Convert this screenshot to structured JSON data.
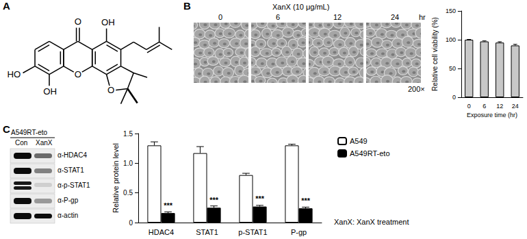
{
  "panels": {
    "A": {
      "letter": "A",
      "atoms": {
        "carbonyl": "O",
        "hydroxyl_top": "OH",
        "hydroxyl_left": "HO",
        "hydroxyl_bottom": "OH",
        "ring_oxygen": "O",
        "furan_oxygen": "O"
      }
    },
    "B": {
      "letter": "B",
      "treatment": "XanX (10 μg/mL)",
      "time_labels": [
        "0",
        "6",
        "12",
        "24"
      ],
      "time_unit": "hr",
      "magnification": "200×"
    },
    "C": {
      "letter": "C",
      "cell_line": "A549RT-eto",
      "lanes": [
        "Con",
        "XanX"
      ],
      "antibodies": [
        "α-HDAC4",
        "α-STAT1",
        "α-p-STAT1",
        "α-P-gp",
        "α-actin"
      ],
      "note": "XanX: XanX treatment"
    }
  },
  "chart_data": [
    {
      "type": "bar",
      "x_label": "Exposure time (hr)",
      "y_label": "Relative cell viability (%)",
      "categories": [
        "0",
        "6",
        "12",
        "24"
      ],
      "values": [
        100,
        97,
        95,
        90
      ],
      "errors": [
        0.5,
        1,
        1.5,
        2
      ],
      "color": "#c8c8c8",
      "ylim": [
        0,
        150
      ],
      "yticks": [
        0,
        50,
        100,
        150
      ],
      "grid": false
    },
    {
      "type": "bar",
      "y_label": "Relative protein level",
      "categories": [
        "HDAC4",
        "STAT1",
        "p-STAT1",
        "P-gp"
      ],
      "series": [
        {
          "name": "A549",
          "color": "#ffffff",
          "values": [
            1.3,
            1.17,
            0.8,
            1.3
          ],
          "errors": [
            0.06,
            0.11,
            0.03,
            0.02
          ]
        },
        {
          "name": "A549RT-eto",
          "color": "#000000",
          "values": [
            0.16,
            0.25,
            0.27,
            0.24
          ],
          "errors": [
            0.02,
            0.03,
            0.02,
            0.02
          ],
          "annotations": [
            "***",
            "***",
            "***",
            "***"
          ]
        }
      ],
      "ylim": [
        0,
        1.5
      ],
      "yticks": [
        0,
        0.5,
        {
          "value": 1,
          "label": "1.0"
        },
        1.5
      ],
      "grid": false,
      "legend": "right"
    }
  ]
}
